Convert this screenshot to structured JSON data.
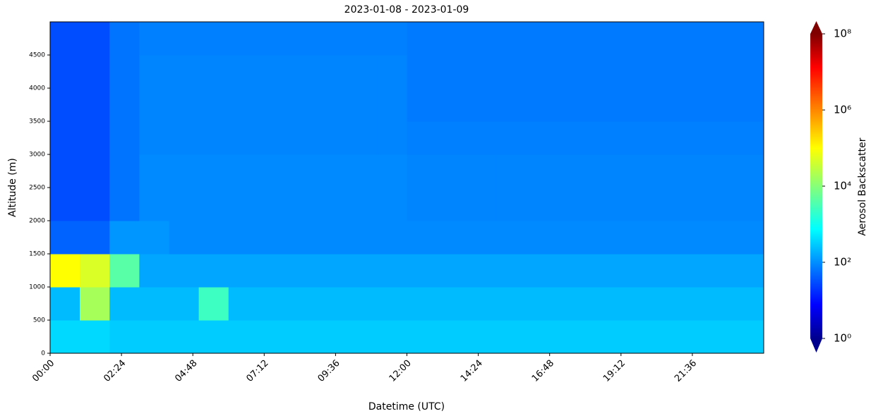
{
  "chart_data": {
    "type": "heatmap",
    "title": "2023-01-08 - 2023-01-09",
    "x_label": "Datetime (UTC)",
    "y_label": "Altitude (m)",
    "colorbar_label": "Aerosol Backscatter",
    "xlim": [
      0,
      24
    ],
    "xticks": [
      {
        "value": 0,
        "label": "00:00"
      },
      {
        "value": 2.4,
        "label": "02:24"
      },
      {
        "value": 4.8,
        "label": "04:48"
      },
      {
        "value": 7.2,
        "label": "07:12"
      },
      {
        "value": 9.6,
        "label": "09:36"
      },
      {
        "value": 12,
        "label": "12:00"
      },
      {
        "value": 14.4,
        "label": "14:24"
      },
      {
        "value": 16.8,
        "label": "16:48"
      },
      {
        "value": 19.2,
        "label": "19:12"
      },
      {
        "value": 21.6,
        "label": "21:36"
      }
    ],
    "ylim": [
      0,
      5000
    ],
    "yticks": [
      0,
      500,
      1000,
      1500,
      2000,
      2500,
      3000,
      3500,
      4000,
      4500
    ],
    "clim": [
      1,
      100000000
    ],
    "color_scale": "log",
    "colormap": "jet",
    "cticks": [
      {
        "value": 1,
        "label": "10⁰"
      },
      {
        "value": 100,
        "label": "10²"
      },
      {
        "value": 10000,
        "label": "10⁴"
      },
      {
        "value": 1000000,
        "label": "10⁶"
      },
      {
        "value": 100000000,
        "label": "10⁸"
      }
    ],
    "values": [
      [
        500,
        500,
        400,
        400,
        400,
        400,
        400,
        400,
        400,
        400,
        400,
        400,
        400,
        400,
        400,
        400,
        400,
        400,
        400,
        400,
        400,
        400,
        400,
        400
      ],
      [
        300,
        20000,
        300,
        300,
        300,
        3000,
        300,
        300,
        300,
        300,
        300,
        300,
        300,
        300,
        300,
        300,
        300,
        300,
        300,
        300,
        300,
        300,
        300,
        300
      ],
      [
        100000,
        50000,
        5000,
        200,
        200,
        200,
        200,
        200,
        200,
        200,
        200,
        200,
        200,
        200,
        200,
        200,
        200,
        200,
        200,
        200,
        200,
        200,
        200,
        200
      ],
      [
        60,
        60,
        150,
        150,
        120,
        120,
        120,
        120,
        120,
        120,
        120,
        120,
        120,
        120,
        120,
        120,
        120,
        120,
        120,
        120,
        120,
        120,
        120,
        120
      ],
      [
        40,
        40,
        80,
        120,
        120,
        120,
        120,
        120,
        120,
        120,
        120,
        120,
        110,
        110,
        110,
        110,
        110,
        110,
        110,
        110,
        110,
        110,
        110,
        110
      ],
      [
        40,
        40,
        80,
        120,
        120,
        120,
        120,
        120,
        120,
        120,
        120,
        120,
        110,
        110,
        110,
        110,
        110,
        110,
        110,
        110,
        110,
        110,
        110,
        110
      ],
      [
        40,
        40,
        80,
        110,
        110,
        110,
        110,
        110,
        110,
        110,
        110,
        110,
        100,
        100,
        100,
        100,
        100,
        100,
        100,
        100,
        100,
        100,
        100,
        100
      ],
      [
        40,
        40,
        80,
        110,
        110,
        110,
        110,
        110,
        110,
        110,
        110,
        110,
        90,
        90,
        90,
        90,
        90,
        90,
        90,
        90,
        90,
        90,
        90,
        90
      ],
      [
        40,
        40,
        80,
        110,
        110,
        110,
        110,
        110,
        110,
        110,
        110,
        110,
        90,
        90,
        90,
        90,
        90,
        90,
        90,
        90,
        90,
        90,
        90,
        90
      ],
      [
        40,
        40,
        80,
        100,
        100,
        100,
        100,
        100,
        100,
        100,
        100,
        100,
        90,
        90,
        90,
        90,
        90,
        90,
        90,
        90,
        90,
        90,
        90,
        90
      ]
    ]
  }
}
